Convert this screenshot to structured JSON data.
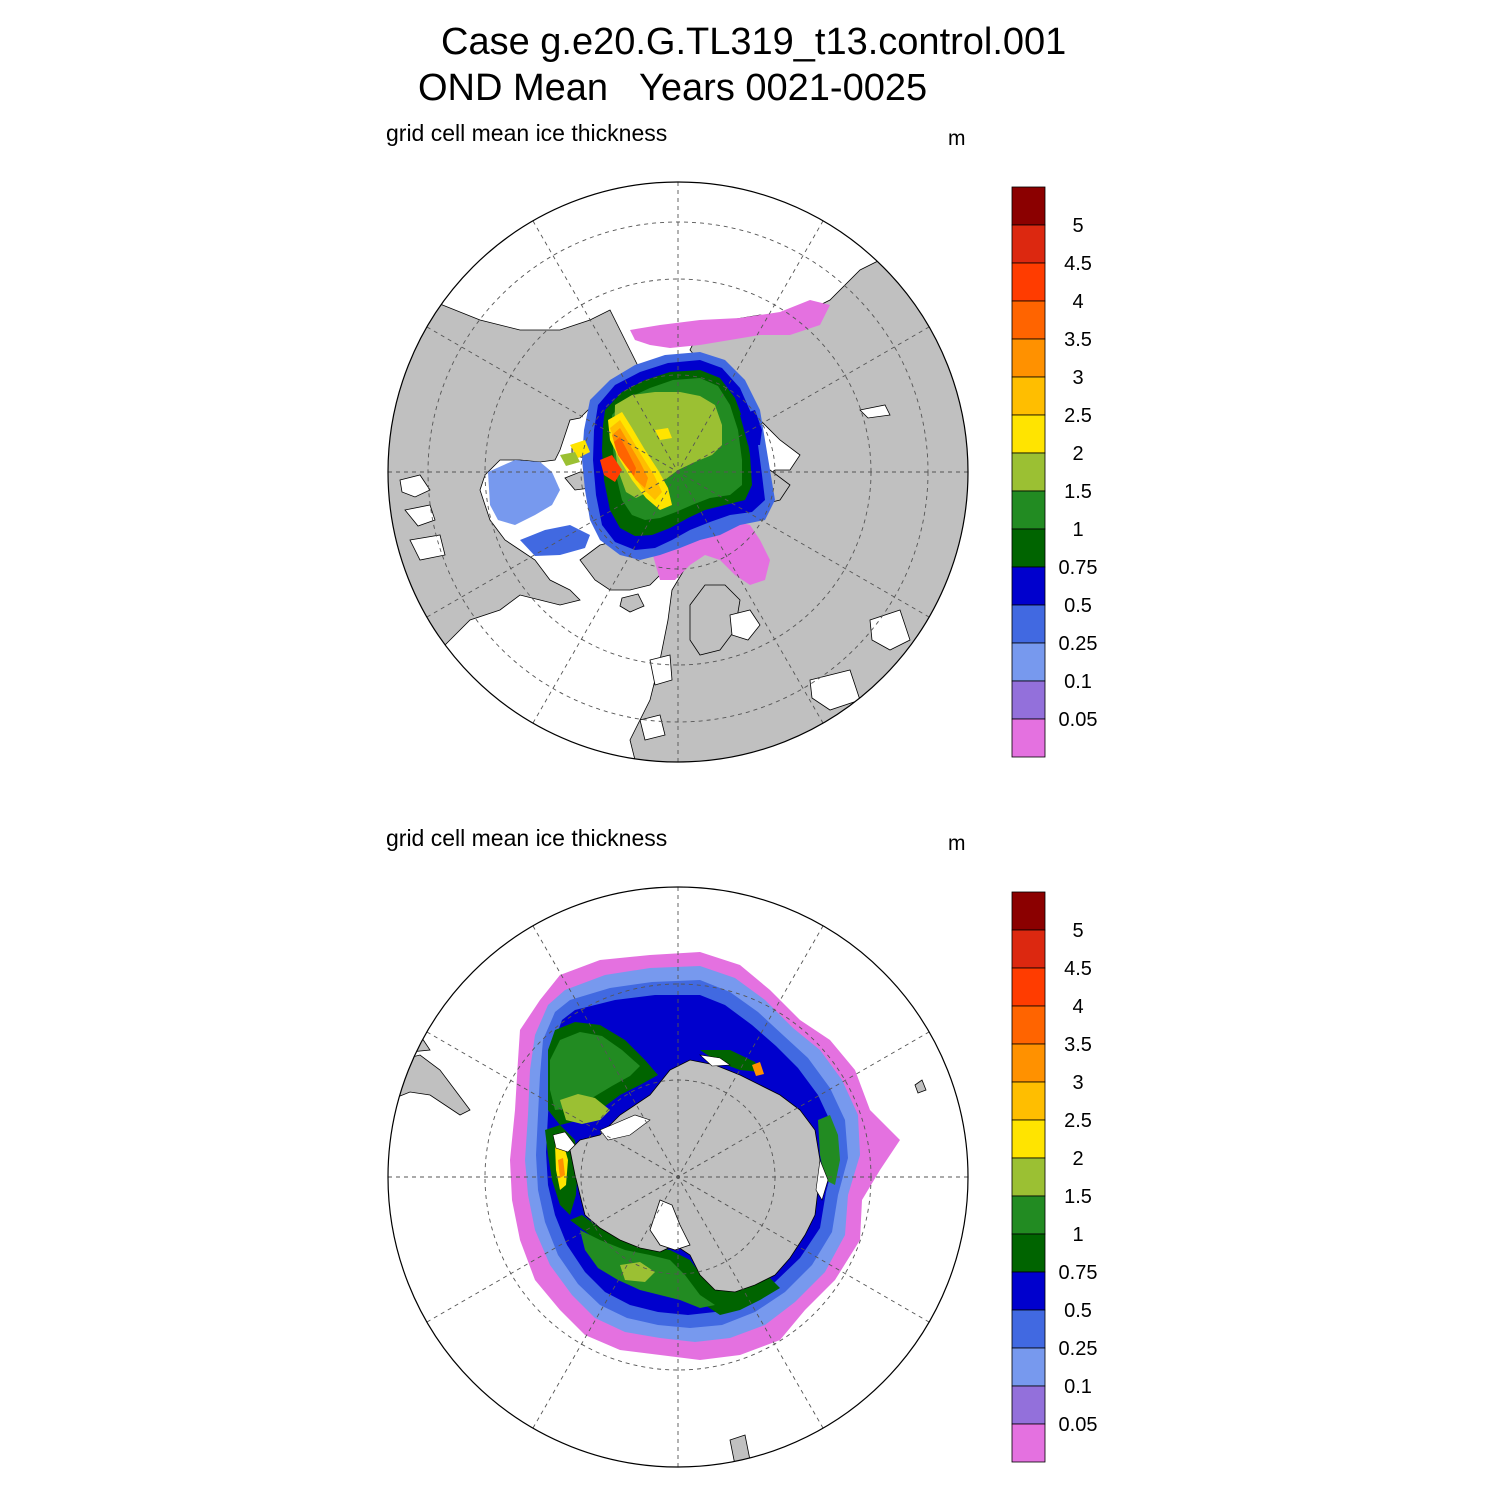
{
  "title": {
    "line1": "Case g.e20.G.TL319_t13.control.001",
    "line2": "OND Mean   Years 0021-0025"
  },
  "panels": [
    {
      "id": "arctic",
      "variable_label": "grid cell mean ice thickness",
      "units": "m",
      "hemisphere": "north"
    },
    {
      "id": "antarctic",
      "variable_label": "grid cell mean ice thickness",
      "units": "m",
      "hemisphere": "south"
    }
  ],
  "colorbar": {
    "labels": [
      "5",
      "4.5",
      "4",
      "3.5",
      "3",
      "2.5",
      "2",
      "1.5",
      "1",
      "0.75",
      "0.5",
      "0.25",
      "0.1",
      "0.05"
    ],
    "colors": [
      "#8b0000",
      "#dc2810",
      "#ff3c00",
      "#ff6400",
      "#ff9100",
      "#ffbe00",
      "#ffe400",
      "#9bc033",
      "#228b22",
      "#006400",
      "#0000cd",
      "#4169e1",
      "#7799ee",
      "#9370db",
      "#e471e0"
    ]
  },
  "map_colors": {
    "land": "#c0c0c0",
    "ocean": "#ffffff",
    "grid": "#555555"
  }
}
